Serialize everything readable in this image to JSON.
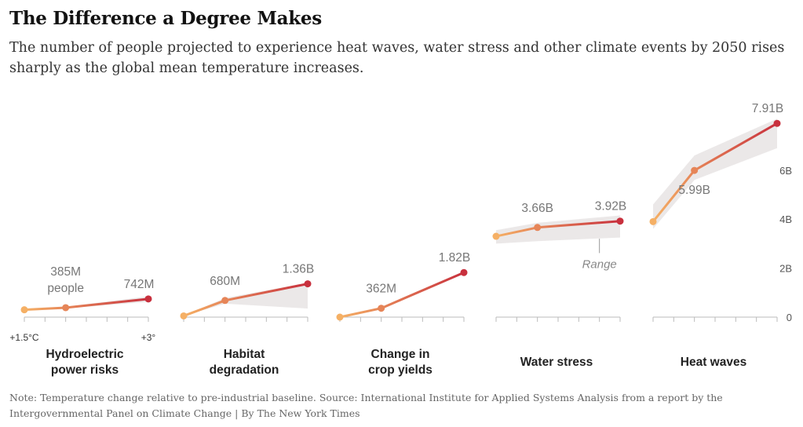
{
  "header": {
    "title": "The Difference a Degree Makes",
    "subtitle": "The number of people projected to experience heat waves, water stress and other climate events by 2050 rises sharply as the global mean temperature increases."
  },
  "footer": {
    "note": "Note: Temperature change relative to pre-industrial baseline. Source: International Institute for Applied Systems Analysis from a report by the Intergovernmental Panel on Climate Change | By The New York Times"
  },
  "colors": {
    "low": "#f5b065",
    "high": "#c8303d",
    "band": "#ebe8e8",
    "axis": "#bbbbbb"
  },
  "chart_data": {
    "type": "line",
    "unit": "billions of people",
    "ylim": [
      0,
      8
    ],
    "y_ticks": [
      {
        "value": 0,
        "label": "0"
      },
      {
        "value": 2,
        "label": "2B"
      },
      {
        "value": 4,
        "label": "4B"
      },
      {
        "value": 6,
        "label": "6B"
      }
    ],
    "x_ticks": [
      "+1.5°C",
      "",
      "",
      "",
      "",
      "",
      "+3°"
    ],
    "temperature_range": [
      1.5,
      3
    ],
    "range_label": "Range",
    "panels": [
      {
        "category": [
          "Hydroelectric",
          "power risks"
        ],
        "points": [
          [
            1.5,
            0.3
          ],
          [
            2,
            0.385
          ],
          [
            3,
            0.742
          ]
        ],
        "band_low": [
          [
            1.5,
            0.3
          ],
          [
            2,
            0.36
          ],
          [
            3,
            0.62
          ]
        ],
        "band_high": [
          [
            1.5,
            0.3
          ],
          [
            2,
            0.42
          ],
          [
            3,
            0.85
          ]
        ],
        "value_labels": [
          {
            "index": 1,
            "lines": [
              "385M",
              "people"
            ]
          },
          {
            "index": 2,
            "lines": [
              "742M"
            ]
          }
        ]
      },
      {
        "category": [
          "Habitat",
          "degradation"
        ],
        "points": [
          [
            1.5,
            0.05
          ],
          [
            2,
            0.68
          ],
          [
            3,
            1.36
          ]
        ],
        "band_low": [
          [
            1.5,
            0.05
          ],
          [
            2,
            0.55
          ],
          [
            3,
            0.35
          ]
        ],
        "band_high": [
          [
            1.5,
            0.05
          ],
          [
            2,
            0.78
          ],
          [
            3,
            1.4
          ]
        ],
        "value_labels": [
          {
            "index": 1,
            "lines": [
              "680M"
            ]
          },
          {
            "index": 2,
            "lines": [
              "1.36B"
            ]
          }
        ]
      },
      {
        "category": [
          "Change in",
          "crop yields"
        ],
        "points": [
          [
            1.5,
            0.0
          ],
          [
            2,
            0.362
          ],
          [
            3,
            1.82
          ]
        ],
        "band_low": [
          [
            1.5,
            0.0
          ],
          [
            2,
            0.33
          ],
          [
            3,
            1.78
          ]
        ],
        "band_high": [
          [
            1.5,
            0.0
          ],
          [
            2,
            0.39
          ],
          [
            3,
            1.86
          ]
        ],
        "value_labels": [
          {
            "index": 1,
            "lines": [
              "362M"
            ]
          },
          {
            "index": 2,
            "lines": [
              "1.82B"
            ]
          }
        ]
      },
      {
        "category": [
          "Water stress"
        ],
        "points": [
          [
            1.5,
            3.3
          ],
          [
            2,
            3.66
          ],
          [
            3,
            3.92
          ]
        ],
        "band_low": [
          [
            1.5,
            3.0
          ],
          [
            2,
            3.1
          ],
          [
            3,
            3.25
          ]
        ],
        "band_high": [
          [
            1.5,
            3.55
          ],
          [
            2,
            3.85
          ],
          [
            3,
            4.15
          ]
        ],
        "value_labels": [
          {
            "index": 1,
            "lines": [
              "3.66B"
            ]
          },
          {
            "index": 2,
            "lines": [
              "3.92B"
            ]
          }
        ],
        "range_marker_x": 2.75
      },
      {
        "category": [
          "Heat waves"
        ],
        "points": [
          [
            1.5,
            3.9
          ],
          [
            2,
            5.99
          ],
          [
            3,
            7.91
          ]
        ],
        "band_low": [
          [
            1.5,
            3.6
          ],
          [
            2,
            5.6
          ],
          [
            3,
            6.9
          ]
        ],
        "band_high": [
          [
            1.5,
            4.6
          ],
          [
            2,
            6.6
          ],
          [
            3,
            8.1
          ]
        ],
        "value_labels": [
          {
            "index": 1,
            "lines": [
              "5.99B"
            ],
            "below": true
          },
          {
            "index": 2,
            "lines": [
              "7.91B"
            ]
          }
        ]
      }
    ]
  }
}
